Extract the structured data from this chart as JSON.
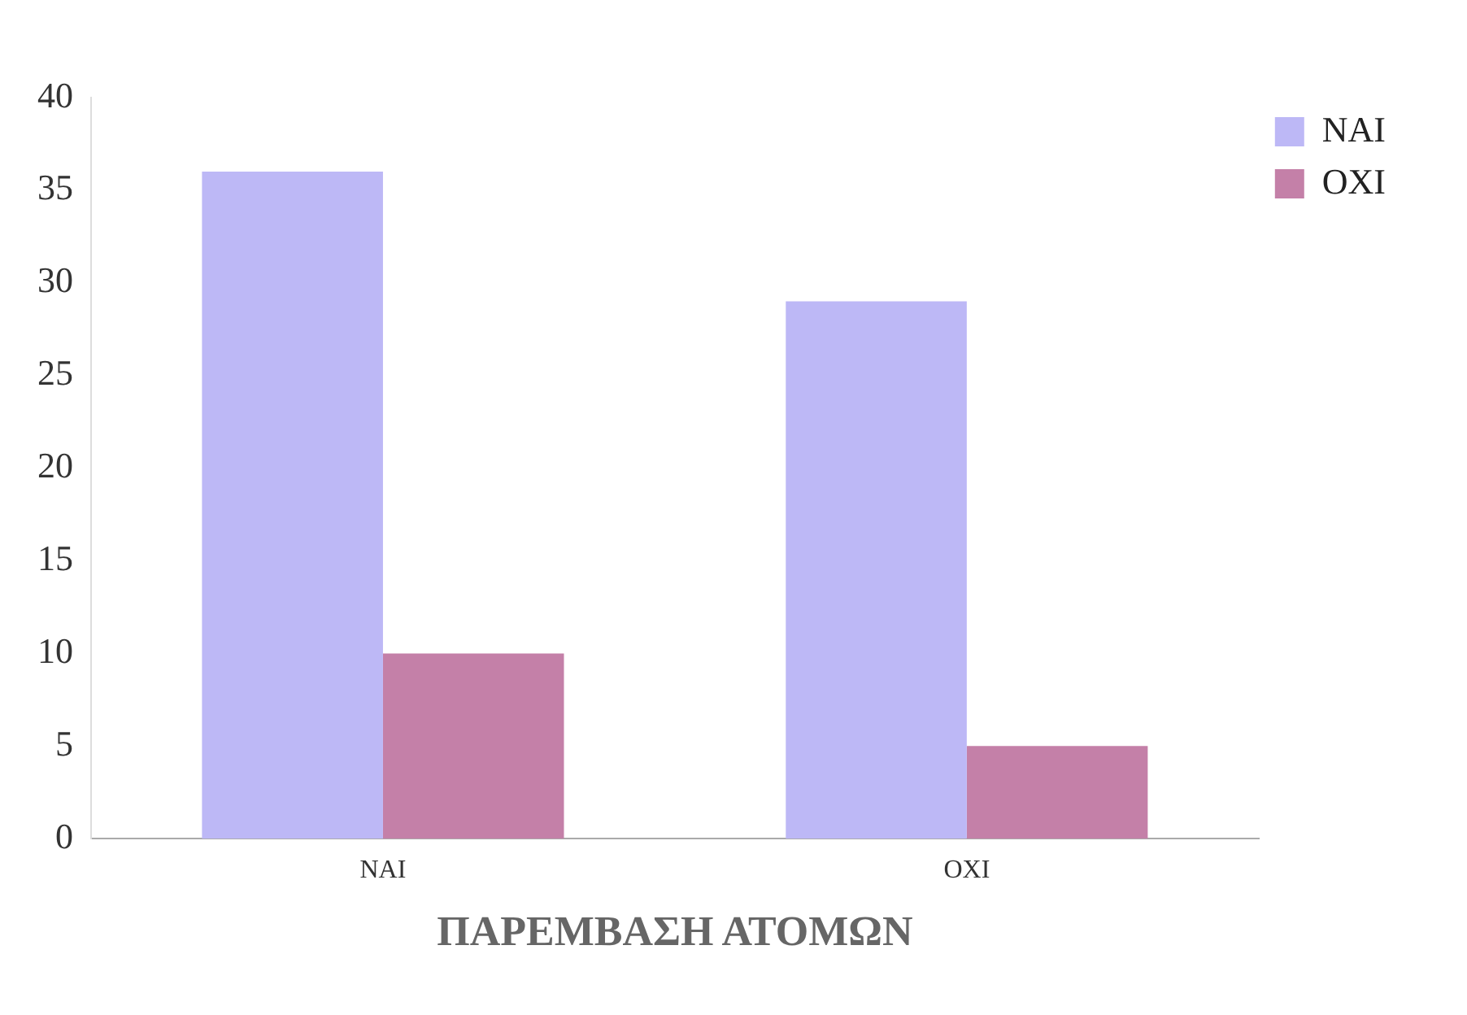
{
  "chart_data": {
    "type": "bar",
    "xlabel": "ΠΑΡΕΜΒΑΣΗ ΑΤΟΜΩΝ",
    "categories": [
      "ΝΑΙ",
      "ΟΧΙ"
    ],
    "series": [
      {
        "name": "ΝΑΙ",
        "color": "#bdb8f6",
        "values": [
          36,
          29
        ]
      },
      {
        "name": "ΟΧΙ",
        "color": "#c480a8",
        "values": [
          10,
          5
        ]
      }
    ],
    "ylim": [
      0,
      40
    ],
    "yticks": [
      0,
      5,
      10,
      15,
      20,
      25,
      30,
      35,
      40
    ],
    "grid": false,
    "legend": "top right"
  }
}
